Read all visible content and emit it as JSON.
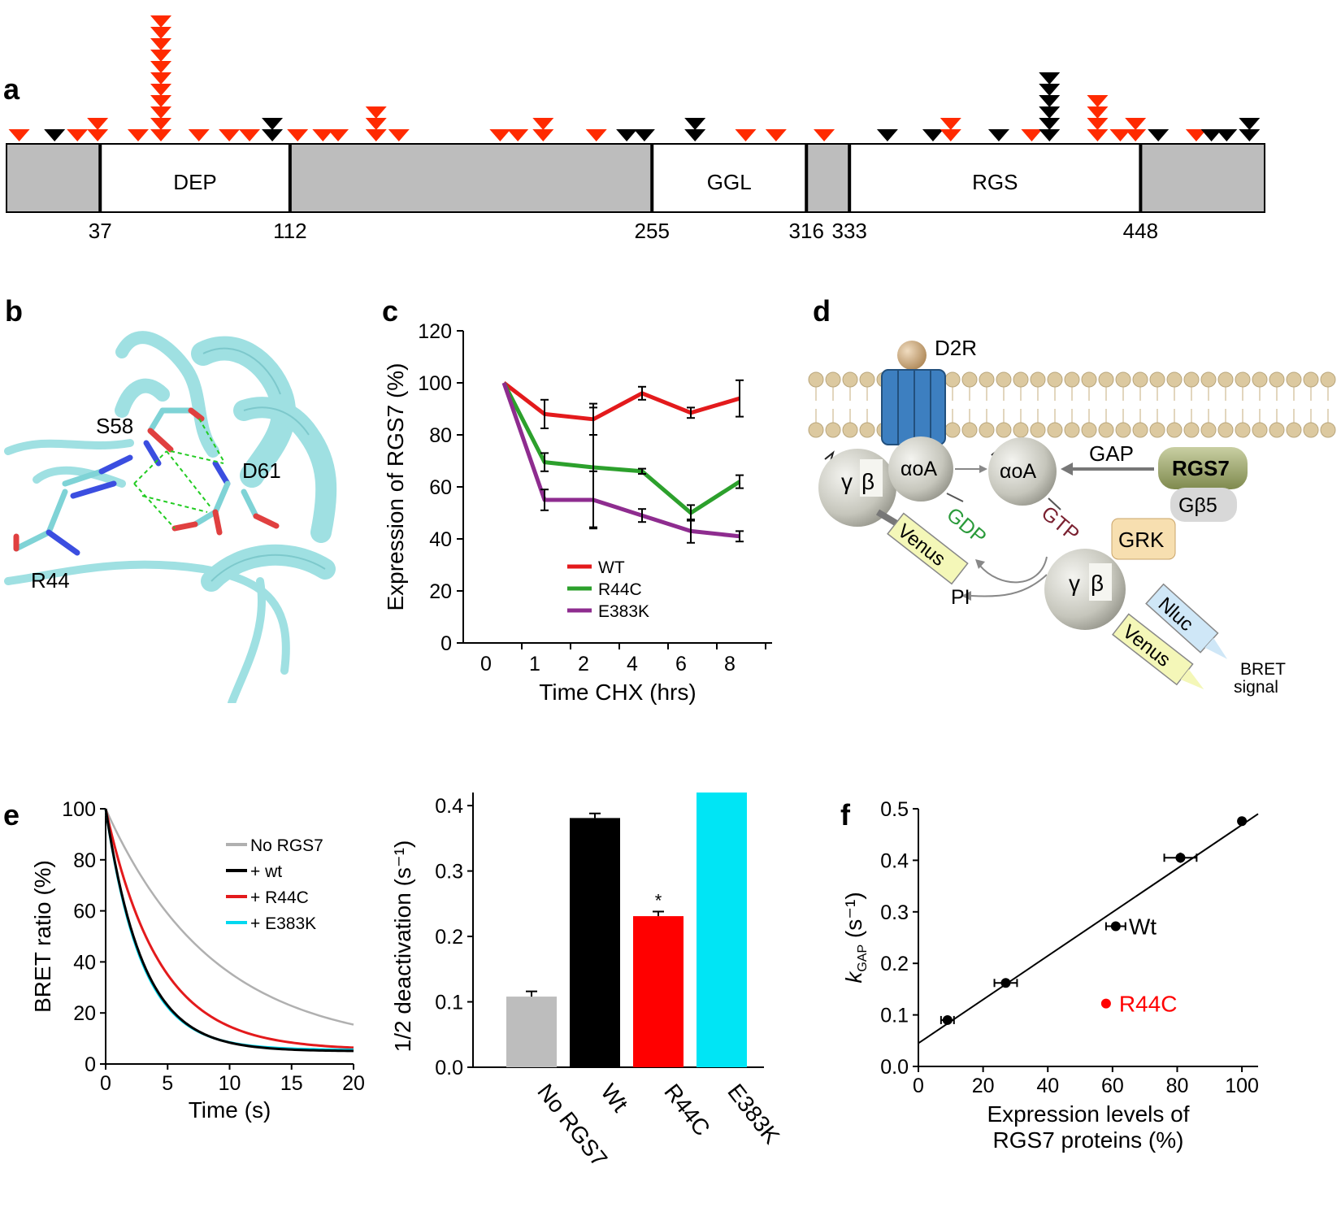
{
  "panels": {
    "a": {
      "label": "a",
      "domains": [
        {
          "name": "",
          "start": 0,
          "end": 37,
          "fill": "#bdbdbd"
        },
        {
          "name": "DEP",
          "start": 37,
          "end": 112,
          "fill": "#ffffff"
        },
        {
          "name": "",
          "start": 112,
          "end": 255,
          "fill": "#bdbdbd"
        },
        {
          "name": "GGL",
          "start": 255,
          "end": 316,
          "fill": "#ffffff"
        },
        {
          "name": "",
          "start": 316,
          "end": 333,
          "fill": "#bdbdbd"
        },
        {
          "name": "RGS",
          "start": 333,
          "end": 448,
          "fill": "#ffffff"
        },
        {
          "name": "",
          "start": 448,
          "end": 497,
          "fill": "#bdbdbd"
        }
      ],
      "boundary_labels": [
        "37",
        "112",
        "255",
        "316",
        "333",
        "448"
      ],
      "boundary_positions": [
        37,
        112,
        255,
        316,
        333,
        448
      ],
      "protein_length": 497,
      "variants": [
        {
          "pos": 5,
          "n": 1,
          "color": "red"
        },
        {
          "pos": 19,
          "n": 1,
          "color": "black"
        },
        {
          "pos": 28,
          "n": 1,
          "color": "red"
        },
        {
          "pos": 36,
          "n": 2,
          "color": "red"
        },
        {
          "pos": 52,
          "n": 1,
          "color": "red"
        },
        {
          "pos": 61,
          "n": 11,
          "color": "red"
        },
        {
          "pos": 76,
          "n": 1,
          "color": "red"
        },
        {
          "pos": 88,
          "n": 1,
          "color": "red"
        },
        {
          "pos": 96,
          "n": 1,
          "color": "red"
        },
        {
          "pos": 105,
          "n": 2,
          "color": "black"
        },
        {
          "pos": 115,
          "n": 1,
          "color": "red"
        },
        {
          "pos": 125,
          "n": 1,
          "color": "red"
        },
        {
          "pos": 131,
          "n": 1,
          "color": "red"
        },
        {
          "pos": 146,
          "n": 3,
          "color": "red"
        },
        {
          "pos": 155,
          "n": 1,
          "color": "red"
        },
        {
          "pos": 195,
          "n": 1,
          "color": "red"
        },
        {
          "pos": 202,
          "n": 1,
          "color": "red"
        },
        {
          "pos": 212,
          "n": 2,
          "color": "red"
        },
        {
          "pos": 233,
          "n": 1,
          "color": "red"
        },
        {
          "pos": 245,
          "n": 1,
          "color": "black"
        },
        {
          "pos": 252,
          "n": 1,
          "color": "black"
        },
        {
          "pos": 272,
          "n": 2,
          "color": "black"
        },
        {
          "pos": 292,
          "n": 1,
          "color": "red"
        },
        {
          "pos": 304,
          "n": 1,
          "color": "red"
        },
        {
          "pos": 323,
          "n": 1,
          "color": "red"
        },
        {
          "pos": 348,
          "n": 1,
          "color": "black"
        },
        {
          "pos": 366,
          "n": 1,
          "color": "black"
        },
        {
          "pos": 373,
          "n": 2,
          "color": "red"
        },
        {
          "pos": 392,
          "n": 1,
          "color": "black"
        },
        {
          "pos": 405,
          "n": 1,
          "color": "red"
        },
        {
          "pos": 412,
          "n": 6,
          "color": "black"
        },
        {
          "pos": 431,
          "n": 4,
          "color": "red"
        },
        {
          "pos": 440,
          "n": 1,
          "color": "red"
        },
        {
          "pos": 446,
          "n": 2,
          "color": "red"
        },
        {
          "pos": 455,
          "n": 1,
          "color": "black"
        },
        {
          "pos": 470,
          "n": 1,
          "color": "red"
        },
        {
          "pos": 476,
          "n": 1,
          "color": "black"
        },
        {
          "pos": 482,
          "n": 1,
          "color": "black"
        },
        {
          "pos": 491,
          "n": 2,
          "color": "black"
        }
      ]
    },
    "b": {
      "label": "b",
      "residue_labels": [
        "S58",
        "D61",
        "R44"
      ]
    },
    "d": {
      "label": "d",
      "text": {
        "receptor": "D2R",
        "gamma1": "γ",
        "beta1": "β",
        "alpha1": "αoA",
        "alpha2": "αoA",
        "gdp": "GDP",
        "gtp": "GTP",
        "gap": "GAP",
        "rgs7": "RGS7",
        "gb5": "Gβ5",
        "venus1": "Venus",
        "venus2": "Venus",
        "pi": "PI",
        "gamma2": "γ",
        "beta2": "β",
        "grk": "GRK",
        "nluc": "Nluc",
        "bret_line1": "BRET",
        "bret_line2": "signal"
      }
    },
    "e_label": "e",
    "f_label": "f"
  },
  "chart_data": [
    {
      "id": "c",
      "type": "line",
      "label": "c",
      "categories": [
        "0",
        "1",
        "2",
        "4",
        "6",
        "8"
      ],
      "xlabel": "Time CHX (hrs)",
      "ylabel": "Expression of RGS7 (%)",
      "ylim": [
        0,
        120
      ],
      "yticks": [
        "0",
        "20",
        "40",
        "60",
        "80",
        "100",
        "120"
      ],
      "series": [
        {
          "name": "WT",
          "color": "#e31a1c",
          "values": [
            100,
            88,
            86,
            96,
            88.5,
            94
          ],
          "errors": [
            0,
            5.5,
            6,
            2.5,
            2,
            7
          ]
        },
        {
          "name": "R44C",
          "color": "#2ca02c",
          "values": [
            100,
            69.5,
            67.5,
            66,
            50,
            62
          ],
          "errors": [
            0,
            3.5,
            23,
            1,
            3,
            2.5
          ]
        },
        {
          "name": "E383K",
          "color": "#8e2c8f",
          "values": [
            100,
            55,
            55,
            49,
            43,
            41
          ],
          "errors": [
            0,
            4,
            11,
            2.5,
            4.5,
            2
          ]
        }
      ]
    },
    {
      "id": "e-left",
      "type": "line",
      "xlabel": "Time (s)",
      "ylabel": "BRET ratio (%)",
      "xlim": [
        0,
        20
      ],
      "ylim": [
        0,
        100
      ],
      "xticks": [
        "0",
        "5",
        "10",
        "15",
        "20"
      ],
      "yticks": [
        "0",
        "20",
        "40",
        "60",
        "80",
        "100"
      ],
      "series": [
        {
          "name": "No RGS7",
          "color": "#b0b0b0",
          "tau": 8.7,
          "plateau": 6
        },
        {
          "name": "+ wt",
          "color": "#000000",
          "tau": 3.0,
          "plateau": 5
        },
        {
          "name": "+ R44C",
          "color": "#e31a1c",
          "tau": 4.3,
          "plateau": 5.5
        },
        {
          "name": "+ E383K",
          "color": "#00d8f0",
          "tau": 2.9,
          "plateau": 5.5
        }
      ]
    },
    {
      "id": "e-right",
      "type": "bar",
      "ylabel": "1/2 deactivation (s⁻¹)",
      "categories": [
        "No RGS7",
        "Wt",
        "R44C",
        "E383K"
      ],
      "values": [
        0.108,
        0.381,
        0.231,
        0.42
      ],
      "errors": [
        0.008,
        0.007,
        0.007,
        0.007
      ],
      "colors": [
        "#bdbdbd",
        "#000000",
        "#ff0000",
        "#00e5f5"
      ],
      "annotations": [
        "",
        "",
        "*",
        ""
      ],
      "ylim": [
        0,
        0.42
      ],
      "yticks": [
        "0.0",
        "0.1",
        "0.2",
        "0.3",
        "0.4"
      ]
    },
    {
      "id": "f",
      "type": "scatter",
      "xlabel_line1": "Expression levels of",
      "xlabel_line2": "RGS7 proteins (%)",
      "ylabel": "k",
      "ylabel_sub": "GAP",
      "ylabel_tail": " (s⁻¹)",
      "xlim": [
        0,
        105
      ],
      "ylim": [
        0,
        0.5
      ],
      "xticks": [
        "0",
        "20",
        "40",
        "60",
        "80",
        "100"
      ],
      "yticks": [
        "0.0",
        "0.1",
        "0.2",
        "0.3",
        "0.4",
        "0.5"
      ],
      "points": [
        {
          "x": 9,
          "y": 0.09,
          "xerr": 2,
          "yerr": 0.004,
          "color": "#000000",
          "label": ""
        },
        {
          "x": 27,
          "y": 0.162,
          "xerr": 3.5,
          "yerr": 0.004,
          "color": "#000000",
          "label": ""
        },
        {
          "x": 61,
          "y": 0.272,
          "xerr": 3,
          "yerr": 0.004,
          "color": "#000000",
          "label": "Wt"
        },
        {
          "x": 81,
          "y": 0.405,
          "xerr": 5,
          "yerr": 0.01,
          "color": "#000000",
          "label": ""
        },
        {
          "x": 100,
          "y": 0.476,
          "xerr": 0,
          "yerr": 0.006,
          "color": "#000000",
          "label": ""
        },
        {
          "x": 58,
          "y": 0.122,
          "xerr": 0,
          "yerr": 0,
          "color": "#ff0000",
          "label": "R44C"
        }
      ],
      "fit_line": {
        "x": [
          0,
          105
        ],
        "y": [
          0.045,
          0.49
        ]
      }
    }
  ]
}
